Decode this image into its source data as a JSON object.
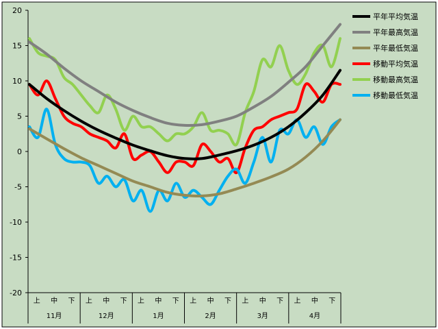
{
  "chart_data": {
    "type": "line",
    "title": "",
    "xlabel": "",
    "ylabel": "",
    "ylim": [
      -20,
      20
    ],
    "y_ticks": [
      -20,
      -15,
      -10,
      -5,
      0,
      5,
      10,
      15,
      20
    ],
    "months": [
      "11月",
      "12月",
      "1月",
      "2月",
      "3月",
      "4月"
    ],
    "periods": [
      "上",
      "中",
      "下"
    ],
    "x_range": [
      0,
      18
    ],
    "grid": false,
    "legend_position": "right",
    "background_color": "#c8dcc3",
    "series": [
      {
        "name": "平年平均気温",
        "color": "#000000",
        "x": [
          0,
          1,
          2,
          3,
          4,
          5,
          6,
          7,
          8,
          9,
          10,
          11,
          12,
          13,
          14,
          15,
          16,
          17,
          18
        ],
        "y": [
          9.5,
          7.5,
          5.8,
          4.3,
          3.0,
          1.9,
          0.9,
          0.1,
          -0.6,
          -1.0,
          -1.0,
          -0.5,
          0.1,
          0.9,
          2.0,
          3.5,
          5.5,
          8.0,
          11.5
        ]
      },
      {
        "name": "平年最高気温",
        "color": "#808080",
        "x": [
          0,
          1,
          2,
          3,
          4,
          5,
          6,
          7,
          8,
          9,
          10,
          11,
          12,
          13,
          14,
          15,
          16,
          17,
          18
        ],
        "y": [
          15.5,
          13.8,
          11.8,
          10.0,
          8.5,
          7.0,
          5.8,
          4.8,
          4.0,
          3.7,
          3.8,
          4.3,
          5.0,
          6.3,
          7.8,
          9.8,
          12.0,
          15.0,
          18.0
        ]
      },
      {
        "name": "平年最低気温",
        "color": "#948a54",
        "x": [
          0,
          1,
          2,
          3,
          4,
          5,
          6,
          7,
          8,
          9,
          10,
          11,
          12,
          13,
          14,
          15,
          16,
          17,
          18
        ],
        "y": [
          3.2,
          1.8,
          0.4,
          -0.9,
          -2.0,
          -3.1,
          -4.2,
          -5.0,
          -5.8,
          -6.2,
          -6.3,
          -6.0,
          -5.3,
          -4.5,
          -3.6,
          -2.5,
          -0.8,
          1.5,
          4.5
        ]
      },
      {
        "name": "移動平均気温",
        "color": "#ff0000",
        "x": [
          0,
          0.5,
          1,
          1.5,
          2,
          2.5,
          3,
          3.5,
          4,
          4.5,
          5,
          5.5,
          6,
          6.5,
          7,
          7.5,
          8,
          8.5,
          9,
          9.5,
          10,
          10.5,
          11,
          11.5,
          12,
          12.5,
          13,
          13.5,
          14,
          14.5,
          15,
          15.5,
          16,
          16.5,
          17,
          17.5,
          18
        ],
        "y": [
          9.5,
          8.0,
          10.0,
          7.5,
          5.0,
          4.0,
          3.5,
          2.5,
          2.0,
          1.5,
          0.5,
          2.5,
          -1.0,
          -0.5,
          0.0,
          -1.5,
          -3.0,
          -1.5,
          -1.5,
          -2.0,
          1.0,
          0.0,
          -1.5,
          -1.0,
          -3.0,
          0.5,
          3.0,
          3.5,
          4.5,
          5.0,
          5.5,
          6.0,
          9.5,
          8.5,
          7.0,
          9.5,
          9.5
        ]
      },
      {
        "name": "移動最高気温",
        "color": "#92d050",
        "x": [
          0,
          0.5,
          1,
          1.5,
          2,
          2.5,
          3,
          3.5,
          4,
          4.5,
          5,
          5.5,
          6,
          6.5,
          7,
          7.5,
          8,
          8.5,
          9,
          9.5,
          10,
          10.5,
          11,
          11.5,
          12,
          12.5,
          13,
          13.5,
          14,
          14.5,
          15,
          15.5,
          16,
          16.5,
          17,
          17.5,
          18
        ],
        "y": [
          16.0,
          14.0,
          13.5,
          13.0,
          10.5,
          9.5,
          8.0,
          6.5,
          5.5,
          8.0,
          6.0,
          3.0,
          5.0,
          3.5,
          3.5,
          2.5,
          1.5,
          2.5,
          2.5,
          3.5,
          5.5,
          3.0,
          3.0,
          2.5,
          1.0,
          5.5,
          8.5,
          13.0,
          12.0,
          15.0,
          11.5,
          9.5,
          11.0,
          14.0,
          15.0,
          12.0,
          16.0
        ]
      },
      {
        "name": "移動最低気温",
        "color": "#00b0f0",
        "x": [
          0,
          0.5,
          1,
          1.5,
          2,
          2.5,
          3,
          3.5,
          4,
          4.5,
          5,
          5.5,
          6,
          6.5,
          7,
          7.5,
          8,
          8.5,
          9,
          9.5,
          10,
          10.5,
          11,
          11.5,
          12,
          12.5,
          13,
          13.5,
          14,
          14.5,
          15,
          15.5,
          16,
          16.5,
          17,
          17.5,
          18
        ],
        "y": [
          3.5,
          2.0,
          6.0,
          1.0,
          -1.0,
          -1.5,
          -1.5,
          -2.0,
          -4.5,
          -3.5,
          -5.0,
          -4.0,
          -7.0,
          -5.5,
          -8.5,
          -5.5,
          -7.0,
          -4.5,
          -6.5,
          -5.5,
          -6.5,
          -7.5,
          -5.5,
          -3.5,
          -2.5,
          -4.5,
          -1.5,
          2.0,
          -1.5,
          3.0,
          2.5,
          4.5,
          2.0,
          3.5,
          1.0,
          3.5,
          4.5
        ]
      }
    ]
  }
}
